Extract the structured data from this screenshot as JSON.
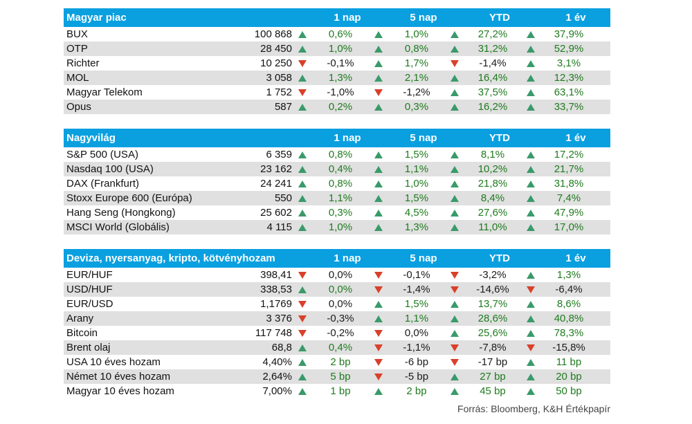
{
  "colors": {
    "header_bg": "#0aa0e0",
    "up_arrow": "#3a9a6a",
    "down_arrow": "#d9402a",
    "positive_text": "#1e7b1e",
    "row_shade": "#e0e0e0"
  },
  "sections": [
    {
      "title": "Magyar piac",
      "cols": [
        "1 nap",
        "5 nap",
        "YTD",
        "1 év"
      ],
      "rows": [
        {
          "name": "BUX",
          "value": "100 868",
          "cells": [
            {
              "v": "0,6%",
              "d": "up"
            },
            {
              "v": "1,0%",
              "d": "up"
            },
            {
              "v": "27,2%",
              "d": "up"
            },
            {
              "v": "37,9%",
              "d": "up"
            }
          ]
        },
        {
          "name": "OTP",
          "value": "28 450",
          "cells": [
            {
              "v": "1,0%",
              "d": "up"
            },
            {
              "v": "0,8%",
              "d": "up"
            },
            {
              "v": "31,2%",
              "d": "up"
            },
            {
              "v": "52,9%",
              "d": "up"
            }
          ]
        },
        {
          "name": "Richter",
          "value": "10 250",
          "cells": [
            {
              "v": "-0,1%",
              "d": "down"
            },
            {
              "v": "1,7%",
              "d": "up"
            },
            {
              "v": "-1,4%",
              "d": "down"
            },
            {
              "v": "3,1%",
              "d": "up"
            }
          ]
        },
        {
          "name": "MOL",
          "value": "3 058",
          "cells": [
            {
              "v": "1,3%",
              "d": "up"
            },
            {
              "v": "2,1%",
              "d": "up"
            },
            {
              "v": "16,4%",
              "d": "up"
            },
            {
              "v": "12,3%",
              "d": "up"
            }
          ]
        },
        {
          "name": "Magyar Telekom",
          "value": "1 752",
          "cells": [
            {
              "v": "-1,0%",
              "d": "down"
            },
            {
              "v": "-1,2%",
              "d": "down"
            },
            {
              "v": "37,5%",
              "d": "up"
            },
            {
              "v": "63,1%",
              "d": "up"
            }
          ]
        },
        {
          "name": "Opus",
          "value": "587",
          "cells": [
            {
              "v": "0,2%",
              "d": "up"
            },
            {
              "v": "0,3%",
              "d": "up"
            },
            {
              "v": "16,2%",
              "d": "up"
            },
            {
              "v": "33,7%",
              "d": "up"
            }
          ]
        }
      ]
    },
    {
      "title": "Nagyvilág",
      "cols": [
        "1 nap",
        "5 nap",
        "YTD",
        "1 év"
      ],
      "rows": [
        {
          "name": "S&P 500 (USA)",
          "value": "6 359",
          "cells": [
            {
              "v": "0,8%",
              "d": "up"
            },
            {
              "v": "1,5%",
              "d": "up"
            },
            {
              "v": "8,1%",
              "d": "up"
            },
            {
              "v": "17,2%",
              "d": "up"
            }
          ]
        },
        {
          "name": "Nasdaq 100 (USA)",
          "value": "23 162",
          "cells": [
            {
              "v": "0,4%",
              "d": "up"
            },
            {
              "v": "1,1%",
              "d": "up"
            },
            {
              "v": "10,2%",
              "d": "up"
            },
            {
              "v": "21,7%",
              "d": "up"
            }
          ]
        },
        {
          "name": "DAX (Frankfurt)",
          "value": "24 241",
          "cells": [
            {
              "v": "0,8%",
              "d": "up"
            },
            {
              "v": "1,0%",
              "d": "up"
            },
            {
              "v": "21,8%",
              "d": "up"
            },
            {
              "v": "31,8%",
              "d": "up"
            }
          ]
        },
        {
          "name": "Stoxx Europe 600 (Európa)",
          "value": "550",
          "cells": [
            {
              "v": "1,1%",
              "d": "up"
            },
            {
              "v": "1,5%",
              "d": "up"
            },
            {
              "v": "8,4%",
              "d": "up"
            },
            {
              "v": "7,4%",
              "d": "up"
            }
          ]
        },
        {
          "name": "Hang Seng (Hongkong)",
          "value": "25 602",
          "cells": [
            {
              "v": "0,3%",
              "d": "up"
            },
            {
              "v": "4,5%",
              "d": "up"
            },
            {
              "v": "27,6%",
              "d": "up"
            },
            {
              "v": "47,9%",
              "d": "up"
            }
          ]
        },
        {
          "name": "MSCI World (Globális)",
          "value": "4 115",
          "cells": [
            {
              "v": "1,0%",
              "d": "up"
            },
            {
              "v": "1,3%",
              "d": "up"
            },
            {
              "v": "11,0%",
              "d": "up"
            },
            {
              "v": "17,0%",
              "d": "up"
            }
          ]
        }
      ]
    },
    {
      "title": "Deviza, nyersanyag, kripto, kötvényhozam",
      "cols": [
        "1 nap",
        "5 nap",
        "YTD",
        "1 év"
      ],
      "rows": [
        {
          "name": "EUR/HUF",
          "value": "398,41",
          "cells": [
            {
              "v": "0,0%",
              "d": "down"
            },
            {
              "v": "-0,1%",
              "d": "down"
            },
            {
              "v": "-3,2%",
              "d": "down"
            },
            {
              "v": "1,3%",
              "d": "up"
            }
          ]
        },
        {
          "name": "USD/HUF",
          "value": "338,53",
          "cells": [
            {
              "v": "0,0%",
              "d": "up"
            },
            {
              "v": "-1,4%",
              "d": "down"
            },
            {
              "v": "-14,6%",
              "d": "down"
            },
            {
              "v": "-6,4%",
              "d": "down"
            }
          ]
        },
        {
          "name": "EUR/USD",
          "value": "1,1769",
          "cells": [
            {
              "v": "0,0%",
              "d": "down"
            },
            {
              "v": "1,5%",
              "d": "up"
            },
            {
              "v": "13,7%",
              "d": "up"
            },
            {
              "v": "8,6%",
              "d": "up"
            }
          ]
        },
        {
          "name": "Arany",
          "value": "3 376",
          "cells": [
            {
              "v": "-0,3%",
              "d": "down"
            },
            {
              "v": "1,1%",
              "d": "up"
            },
            {
              "v": "28,6%",
              "d": "up"
            },
            {
              "v": "40,8%",
              "d": "up"
            }
          ]
        },
        {
          "name": "Bitcoin",
          "value": "117 748",
          "cells": [
            {
              "v": "-0,2%",
              "d": "down"
            },
            {
              "v": "0,0%",
              "d": "down"
            },
            {
              "v": "25,6%",
              "d": "up"
            },
            {
              "v": "78,3%",
              "d": "up"
            }
          ]
        },
        {
          "name": "Brent olaj",
          "value": "68,8",
          "cells": [
            {
              "v": "0,4%",
              "d": "up"
            },
            {
              "v": "-1,1%",
              "d": "down"
            },
            {
              "v": "-7,8%",
              "d": "down"
            },
            {
              "v": "-15,8%",
              "d": "down"
            }
          ]
        },
        {
          "name": "USA 10 éves hozam",
          "value": "4,40%",
          "cells": [
            {
              "v": "2 bp",
              "d": "up"
            },
            {
              "v": "-6 bp",
              "d": "down"
            },
            {
              "v": "-17 bp",
              "d": "down"
            },
            {
              "v": "11 bp",
              "d": "up"
            }
          ]
        },
        {
          "name": "Német 10 éves hozam",
          "value": "2,64%",
          "cells": [
            {
              "v": "5 bp",
              "d": "up"
            },
            {
              "v": "-5 bp",
              "d": "down"
            },
            {
              "v": "27 bp",
              "d": "up"
            },
            {
              "v": "20 bp",
              "d": "up"
            }
          ]
        },
        {
          "name": "Magyar 10 éves hozam",
          "value": "7,00%",
          "cells": [
            {
              "v": "1 bp",
              "d": "up"
            },
            {
              "v": "2 bp",
              "d": "up"
            },
            {
              "v": "45 bp",
              "d": "up"
            },
            {
              "v": "50 bp",
              "d": "up"
            }
          ]
        }
      ]
    }
  ],
  "source": "Forrás: Bloomberg, K&H Értékpapír"
}
